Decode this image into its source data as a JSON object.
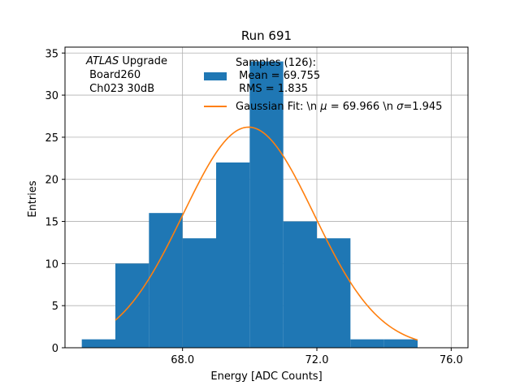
{
  "chart_data": {
    "type": "bar",
    "title": "Run 691",
    "xlabel": "Energy [ADC Counts]",
    "ylabel": "Entries",
    "xlim": [
      64.5,
      76.5
    ],
    "ylim": [
      0,
      35.7
    ],
    "x_ticks": [
      68.0,
      72.0,
      76.0
    ],
    "x_tick_labels": [
      "68.0",
      "72.0",
      "76.0"
    ],
    "y_ticks": [
      0,
      5,
      10,
      15,
      20,
      25,
      30,
      35
    ],
    "y_tick_labels": [
      "0",
      "5",
      "10",
      "15",
      "20",
      "25",
      "30",
      "35"
    ],
    "grid": true,
    "histogram": {
      "name": "Samples",
      "color": "#1f77b4",
      "bins": [
        {
          "x0": 65,
          "x1": 66,
          "count": 1
        },
        {
          "x0": 66,
          "x1": 67,
          "count": 10
        },
        {
          "x0": 67,
          "x1": 68,
          "count": 16
        },
        {
          "x0": 68,
          "x1": 69,
          "count": 13
        },
        {
          "x0": 69,
          "x1": 70,
          "count": 22
        },
        {
          "x0": 70,
          "x1": 71,
          "count": 34
        },
        {
          "x0": 71,
          "x1": 72,
          "count": 15
        },
        {
          "x0": 72,
          "x1": 73,
          "count": 13
        },
        {
          "x0": 73,
          "x1": 74,
          "count": 1
        },
        {
          "x0": 74,
          "x1": 75,
          "count": 1
        }
      ]
    },
    "fit": {
      "name": "Gaussian Fit",
      "color": "#ff7f0e",
      "type": "gaussian",
      "mu": 69.966,
      "sigma": 1.945,
      "amplitude": 26.2,
      "x_range": [
        66.0,
        75.0
      ]
    },
    "annotation": {
      "italic_part": "ATLAS",
      "line1_rest": " Upgrade",
      "line2": " Board260",
      "line3": " Ch023 30dB"
    },
    "legend": {
      "placement": "top-right",
      "samples_line1": "Samples (126):",
      "samples_line2": " Mean = 69.755",
      "samples_line3": " RMS = 1.835",
      "fit_prefix": "Gaussian Fit: \\n ",
      "fit_mu_symbol": "μ",
      "fit_mid": " = 69.966 \\n ",
      "fit_sigma_symbol": "σ",
      "fit_suffix": "=1.945"
    }
  }
}
